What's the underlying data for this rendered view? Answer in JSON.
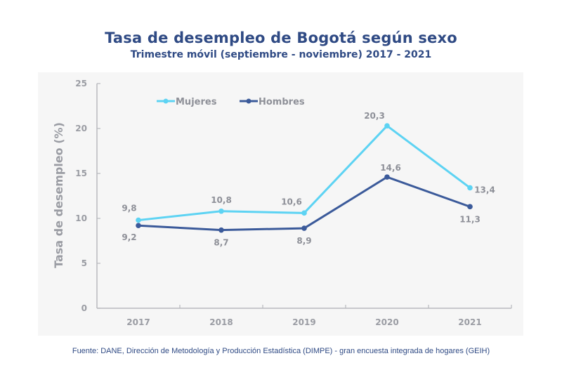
{
  "chart_data": {
    "type": "line",
    "title": "Tasa de desempleo de Bogotá según sexo",
    "subtitle": "Trimestre móvil (septiembre - noviembre) 2017 - 2021",
    "xlabel": "",
    "ylabel": "Tasa de desempleo (%)",
    "categories": [
      "2017",
      "2018",
      "2019",
      "2020",
      "2021"
    ],
    "ylim": [
      0,
      25
    ],
    "yticks": [
      0,
      5,
      10,
      15,
      20,
      25
    ],
    "ytick_labels": [
      "0",
      "5",
      "10",
      "15",
      "20",
      "25"
    ],
    "grid": false,
    "legend_position": "top-left",
    "series": [
      {
        "name": "Mujeres",
        "color": "#5dd3f3",
        "values": [
          9.8,
          10.8,
          10.6,
          20.3,
          13.4
        ],
        "labels": [
          "9,8",
          "10,8",
          "10,6",
          "20,3",
          "13,4"
        ]
      },
      {
        "name": "Hombres",
        "color": "#3b5a9a",
        "values": [
          9.2,
          8.7,
          8.9,
          14.6,
          11.3
        ],
        "labels": [
          "9,2",
          "8,7",
          "8,9",
          "14,6",
          "11,3"
        ]
      }
    ],
    "source": "Fuente: DANE, Dirección de Metodología y Producción Estadística (DIMPE) - gran encuesta integrada de hogares (GEIH)"
  }
}
